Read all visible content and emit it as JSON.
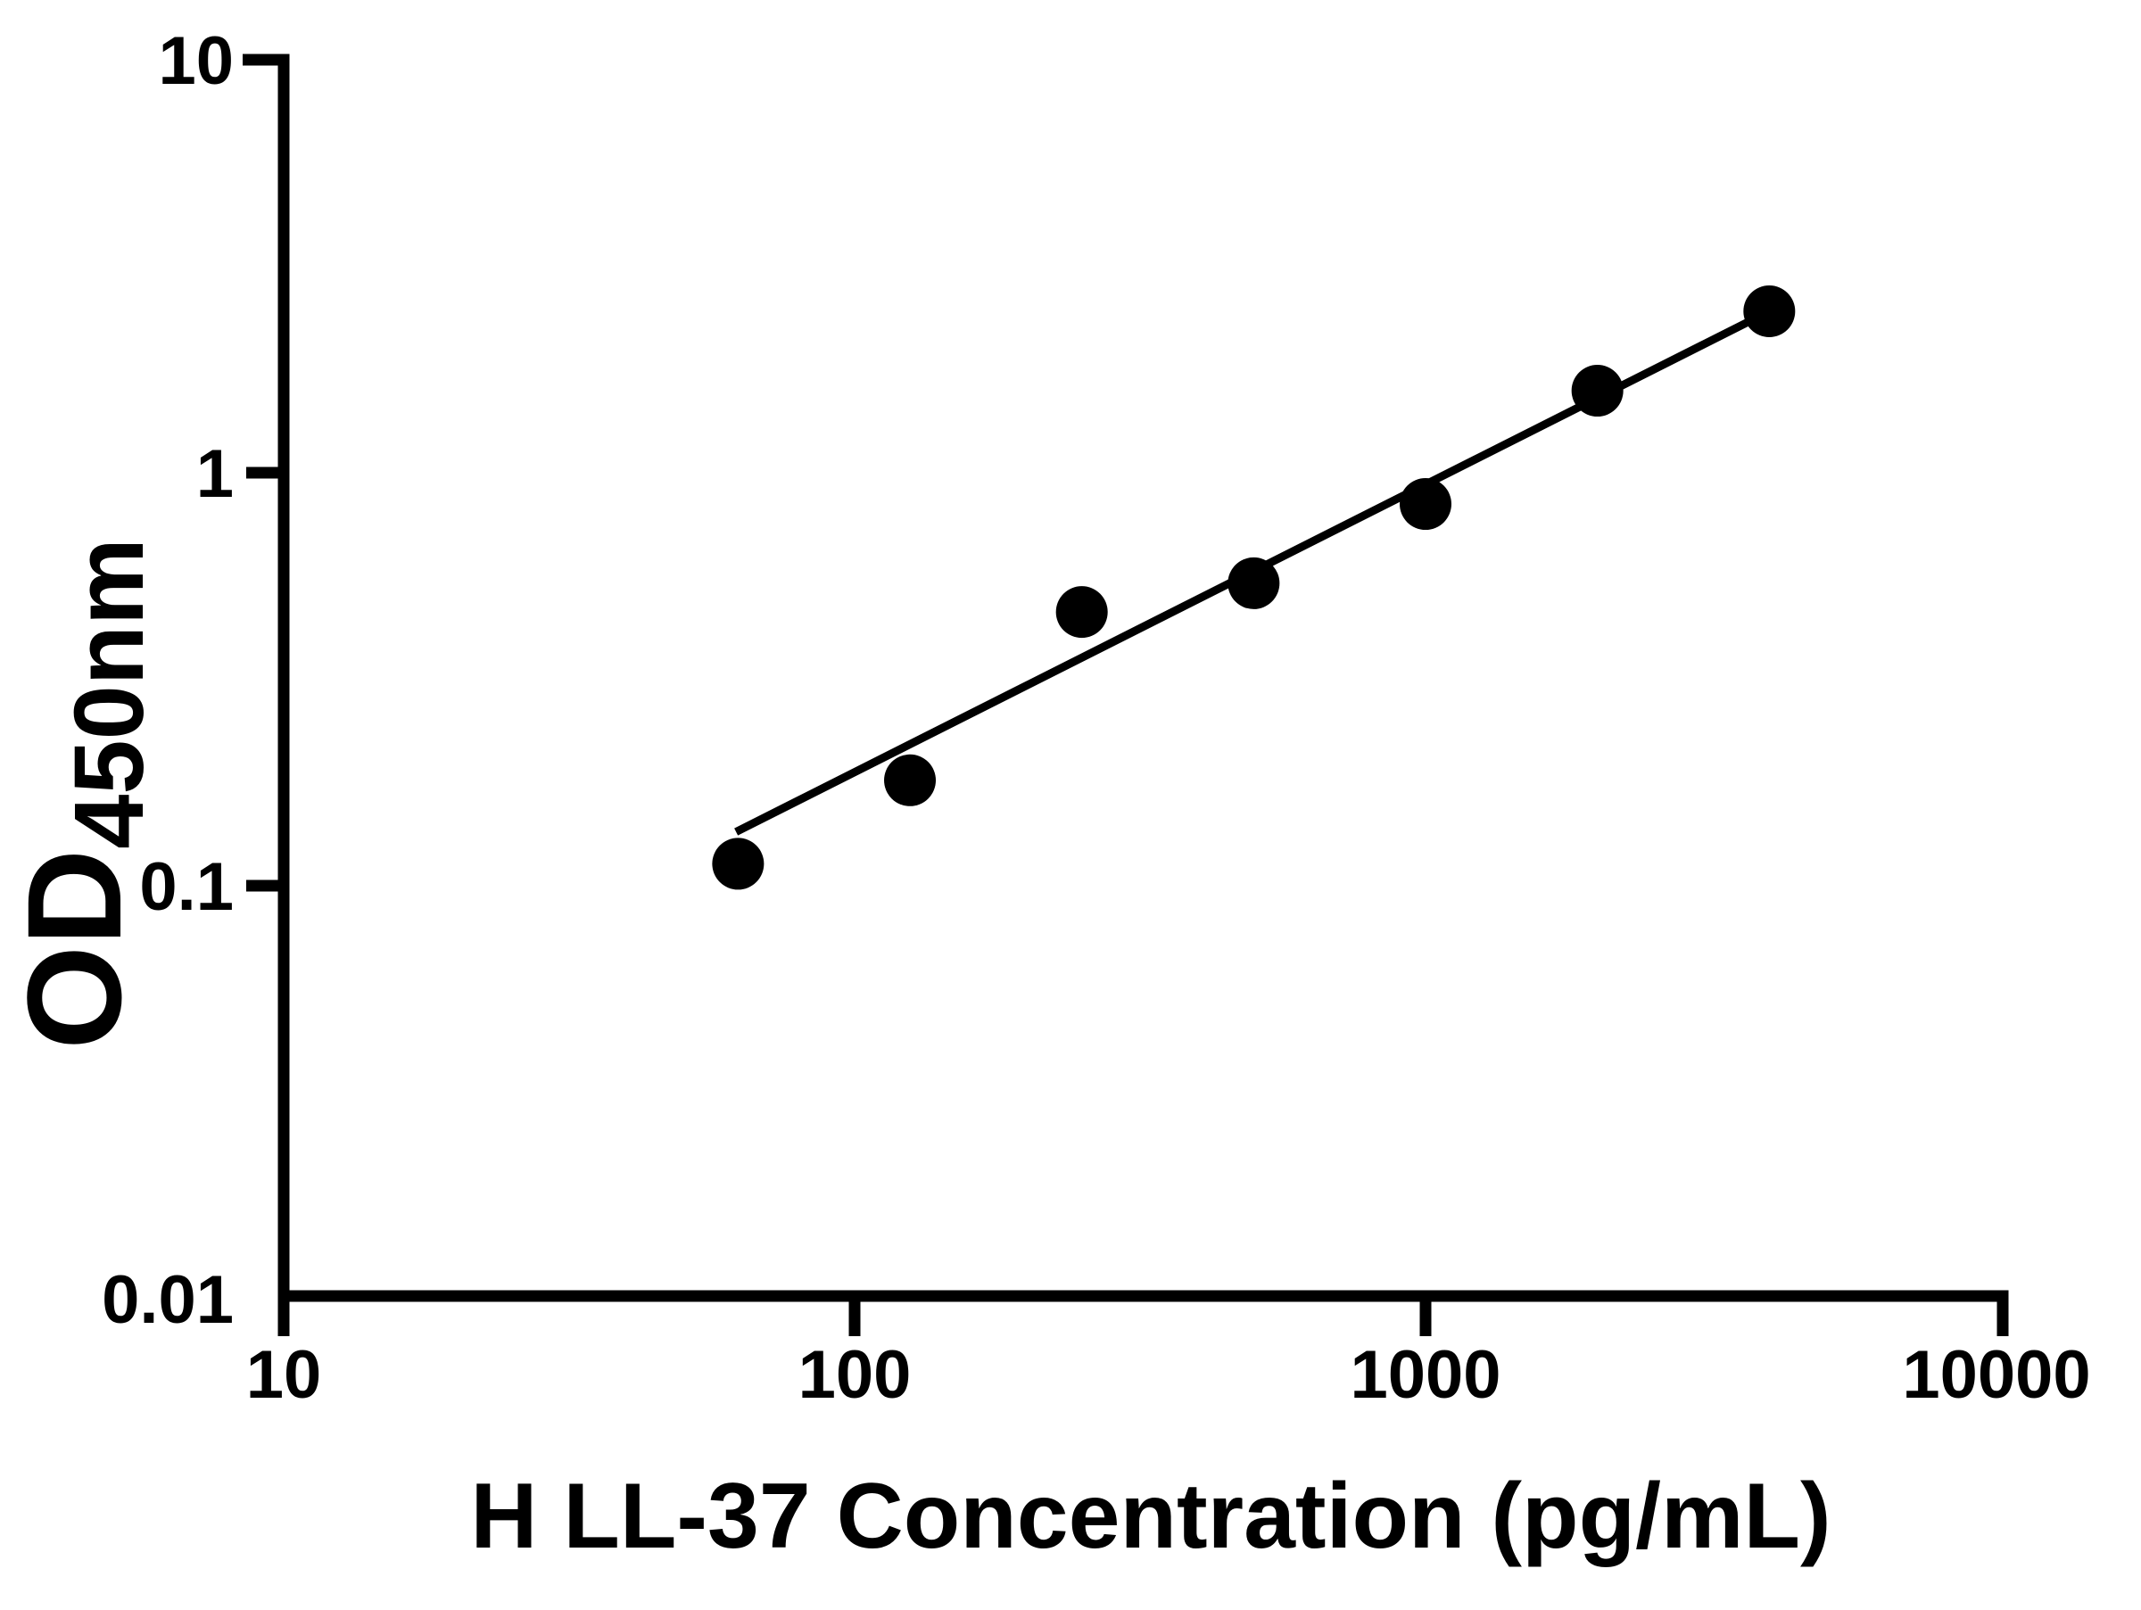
{
  "chart_data": {
    "type": "scatter",
    "title": "",
    "xlabel": "H LL-37 Concentration (pg/mL)",
    "ylabel_main": "OD",
    "ylabel_sub": "450nm",
    "x_scale": "log",
    "y_scale": "log",
    "xlim": [
      10,
      10000
    ],
    "ylim": [
      0.01,
      10
    ],
    "x_tick_values": [
      10,
      100,
      1000,
      10000
    ],
    "x_tick_labels": [
      "10",
      "100",
      "1000",
      "10000"
    ],
    "x_major_ticks_drawn": [
      100,
      1000
    ],
    "y_tick_values": [
      10,
      1,
      0.1,
      0.01
    ],
    "y_tick_labels": [
      "10",
      "1",
      "0.1",
      "0.01"
    ],
    "y_major_ticks_drawn": [
      1,
      0.1
    ],
    "grid": false,
    "legend": "none",
    "background_color": "#ffffff",
    "marker_color": "#000000",
    "line_color": "#000000",
    "marker_shape": "circle",
    "points": [
      {
        "x": 62.5,
        "y": 0.113
      },
      {
        "x": 125,
        "y": 0.18
      },
      {
        "x": 250,
        "y": 0.46
      },
      {
        "x": 500,
        "y": 0.54
      },
      {
        "x": 1000,
        "y": 0.84
      },
      {
        "x": 2000,
        "y": 1.58
      },
      {
        "x": 4000,
        "y": 2.46
      }
    ],
    "trend_line": {
      "x1": 62,
      "y1": 0.135,
      "x2": 4000,
      "y2": 2.46
    }
  }
}
